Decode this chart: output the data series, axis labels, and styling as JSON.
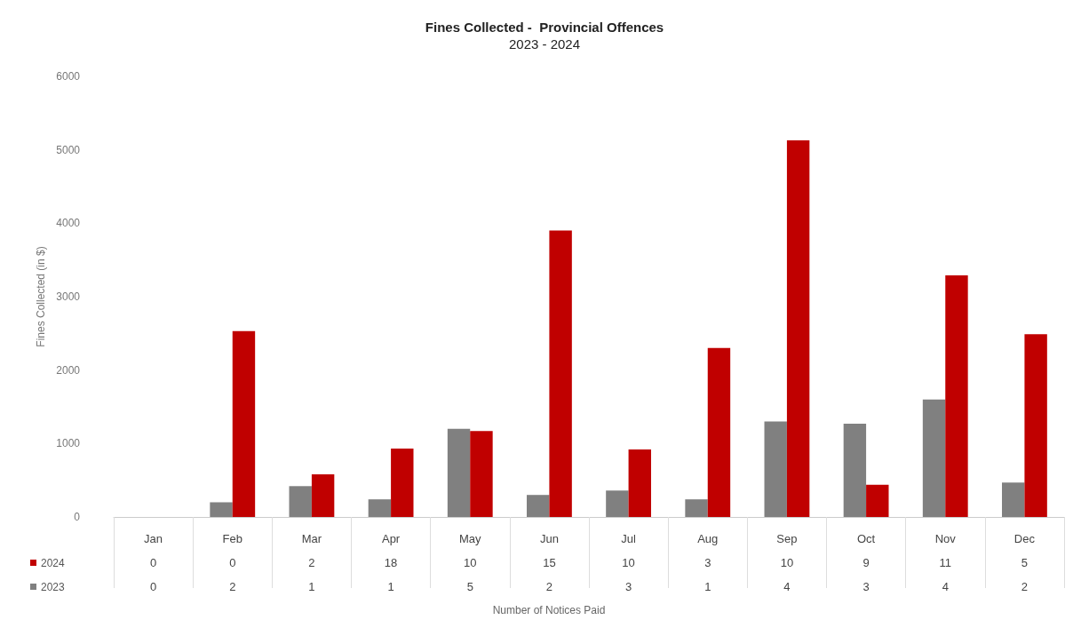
{
  "chart_data": [
    {
      "type": "bar",
      "title": "Fines Collected -  Provincial Offences",
      "subtitle": "2023 - 2024",
      "ylabel": "Fines Collected (in $)",
      "categories": [
        null,
        null,
        null,
        null,
        null,
        null,
        null,
        null,
        null,
        null,
        null,
        null
      ],
      "series": [
        {
          "name": "2023",
          "color": "#808080",
          "values": [
            0,
            200,
            420,
            240,
            1200,
            300,
            360,
            240,
            1300,
            1270,
            1600,
            470
          ]
        },
        {
          "name": "2024",
          "color": "#c00000",
          "values": [
            0,
            2530,
            580,
            930,
            1170,
            3900,
            920,
            2300,
            5130,
            440,
            3290,
            2490
          ]
        }
      ],
      "ylim": [
        0,
        6000
      ],
      "yticks": [
        0,
        1000,
        2000,
        3000,
        4000,
        5000,
        6000
      ],
      "tick_labels": "y"
    },
    {
      "type": "heatmap",
      "xlabel": "Number of Notices Paid",
      "categories": [
        "Jan",
        "Feb",
        "Mar",
        "Apr",
        "May",
        "Jun",
        "Jul",
        "Aug",
        "Sep",
        "Oct",
        "Nov",
        "Dec"
      ],
      "y_categories": [
        "2024",
        "2023"
      ],
      "cells": [
        [
          0,
          0,
          2,
          18,
          10,
          15,
          10,
          3,
          10,
          9,
          11,
          5
        ],
        [
          0,
          2,
          1,
          1,
          5,
          2,
          3,
          1,
          4,
          3,
          4,
          2
        ]
      ],
      "data_labels": true
    }
  ]
}
